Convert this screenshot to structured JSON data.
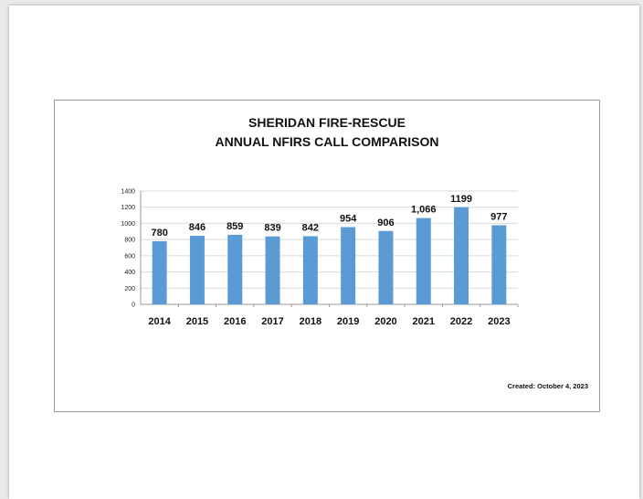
{
  "chart_data": {
    "type": "bar",
    "title": "SHERIDAN FIRE-RESCUE",
    "subtitle": "ANNUAL NFIRS CALL COMPARISON",
    "categories": [
      "2014",
      "2015",
      "2016",
      "2017",
      "2018",
      "2019",
      "2020",
      "2021",
      "2022",
      "2023"
    ],
    "values": [
      780,
      846,
      859,
      839,
      842,
      954,
      906,
      1066,
      1199,
      977
    ],
    "data_labels": [
      "780",
      "846",
      "859",
      "839",
      "842",
      "954",
      "906",
      "1,066",
      "1199",
      "977"
    ],
    "y_ticks": [
      "0",
      "200",
      "400",
      "600",
      "800",
      "1000",
      "1200",
      "1400"
    ],
    "ylim": [
      0,
      1400
    ],
    "grid": true,
    "colors": {
      "bar": "#5b9bd5",
      "grid": "#d9d9d9"
    }
  },
  "footer": {
    "created": "Created:  October 4, 2023"
  }
}
